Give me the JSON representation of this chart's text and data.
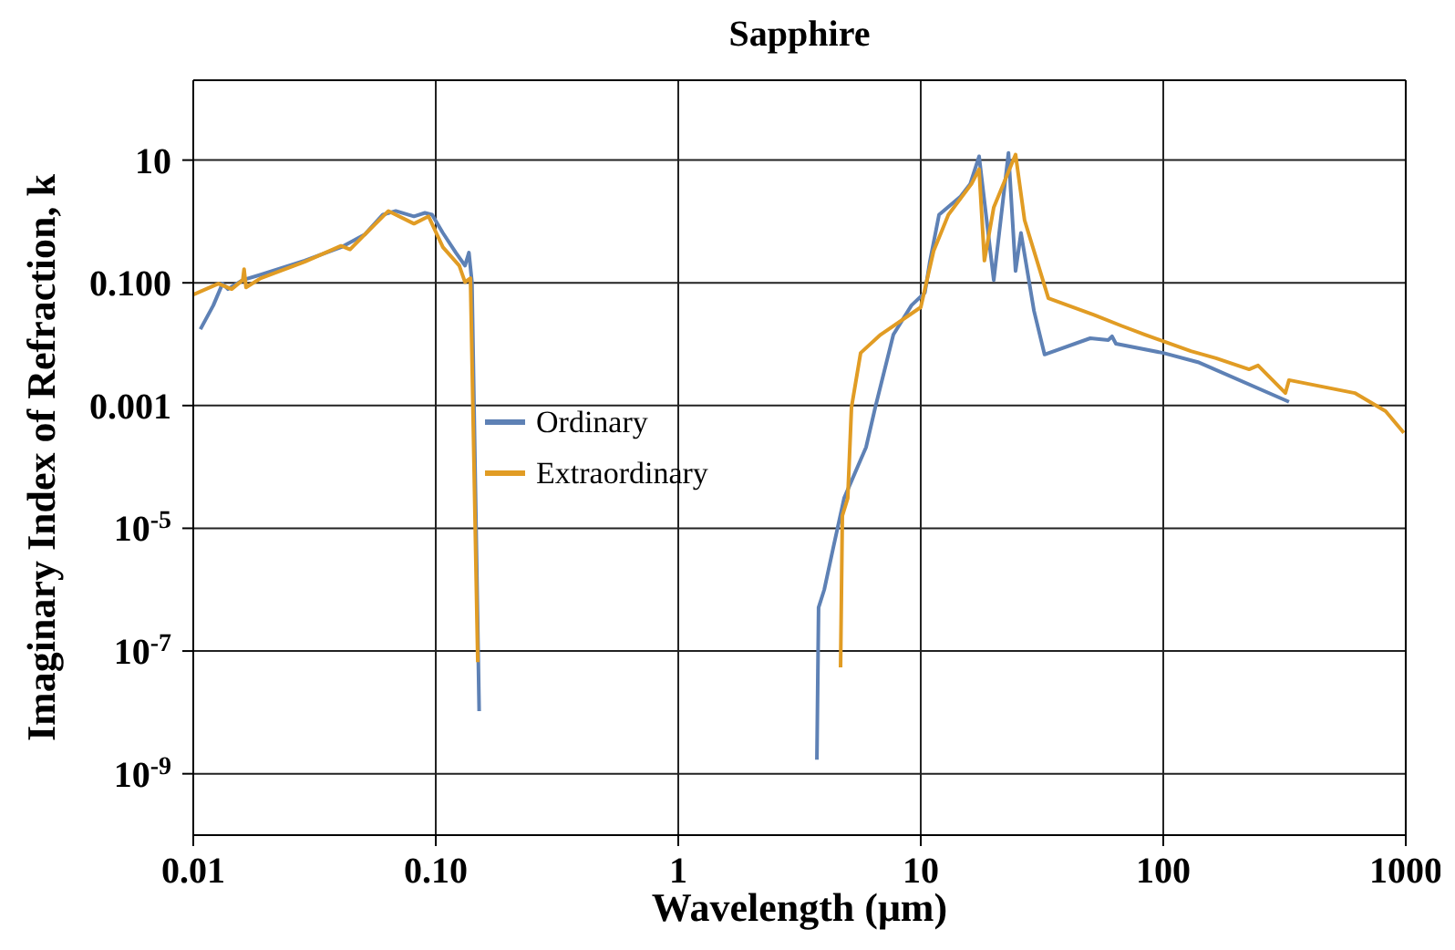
{
  "chart_data": {
    "type": "line",
    "title": "Sapphire",
    "xlabel": "Wavelength (μm)",
    "ylabel": "Imaginary Index of Refraction, k",
    "log": "xy",
    "grid": true,
    "legend": "left",
    "marker": "none",
    "line_style": "solid",
    "xlim": [
      0.01,
      1000
    ],
    "xticks": [
      {
        "value": 0.01,
        "label": "0.01"
      },
      {
        "value": 0.1,
        "label": "0.10"
      },
      1,
      10,
      100,
      1000
    ],
    "ylim": [
      1e-10,
      200
    ],
    "yticks": [
      10,
      {
        "value": 0.1,
        "label": "0.100"
      },
      {
        "value": 0.001,
        "label": "0.001"
      },
      {
        "value": 1e-05,
        "label": "10$^{-5}$"
      },
      {
        "value": 1e-07,
        "label": "10$^{-7}$"
      },
      {
        "value": 1e-09,
        "label": "10$^{-9}$"
      }
    ],
    "series": [
      {
        "name": "Ordinary",
        "color": "#5e81b5",
        "x": [
          0.0107,
          0.0121,
          0.0132,
          0.0139,
          0.016,
          0.019,
          0.0288,
          0.0407,
          0.0509,
          0.0605,
          0.0684,
          0.0813,
          0.0902,
          0.0966,
          0.107,
          0.121,
          0.132,
          0.137,
          0.141,
          0.151,
          1,
          3.73,
          3.79,
          4.0,
          4.36,
          4.83,
          5.95,
          6.49,
          7.71,
          9.16,
          10.4,
          10.9,
          11.9,
          14.6,
          16.0,
          17.4,
          20.0,
          23.0,
          24.6,
          25.9,
          29.3,
          32.4,
          50.0,
          59.4,
          61.5,
          63.8,
          100,
          139,
          330
        ],
        "values": [
          0.0175,
          0.043,
          0.097,
          0.079,
          0.111,
          0.136,
          0.23,
          0.38,
          0.61,
          1.29,
          1.48,
          1.21,
          1.38,
          1.29,
          0.65,
          0.31,
          0.19,
          0.31,
          0.103,
          1.05e-08,
          null,
          1.7e-09,
          5.1e-07,
          1e-06,
          4.9e-06,
          3.1e-05,
          0.00021,
          0.00093,
          0.0143,
          0.043,
          0.069,
          0.22,
          1.29,
          2.56,
          4.1,
          11.5,
          0.111,
          13.1,
          0.156,
          0.65,
          0.035,
          0.0068,
          0.0125,
          0.0117,
          0.0134,
          0.0102,
          0.0072,
          0.0051,
          0.00115
        ]
      },
      {
        "name": "Extraordinary",
        "color": "#e19c24",
        "x": [
          0.01,
          0.0127,
          0.0144,
          0.016,
          0.0162,
          0.0165,
          0.019,
          0.0288,
          0.0407,
          0.0443,
          0.0509,
          0.0638,
          0.0813,
          0.0934,
          0.107,
          0.125,
          0.132,
          0.139,
          0.149,
          1,
          4.67,
          4.75,
          5.0,
          5.18,
          5.65,
          6.83,
          10.0,
          11.3,
          13.0,
          16.2,
          17.4,
          18.3,
          20.0,
          24.6,
          26.8,
          33.6,
          51.8,
          67.1,
          84.1,
          130,
          165,
          226,
          246,
          319,
          330,
          616,
          826,
          982
        ],
        "values": [
          0.064,
          0.097,
          0.079,
          0.111,
          0.167,
          0.084,
          0.119,
          0.22,
          0.4,
          0.35,
          0.61,
          1.48,
          0.92,
          1.21,
          0.38,
          0.19,
          0.103,
          0.119,
          6.6e-08,
          null,
          5.4e-08,
          1.6e-05,
          3.1e-05,
          0.00093,
          0.0072,
          0.0143,
          0.04,
          0.33,
          1.29,
          4.1,
          7.1,
          0.23,
          1.7,
          12.3,
          1.05,
          0.056,
          0.03,
          0.02,
          0.0143,
          0.0077,
          0.0059,
          0.0039,
          0.0045,
          0.0016,
          0.0026,
          0.0016,
          0.00081,
          0.00036
        ]
      }
    ]
  }
}
